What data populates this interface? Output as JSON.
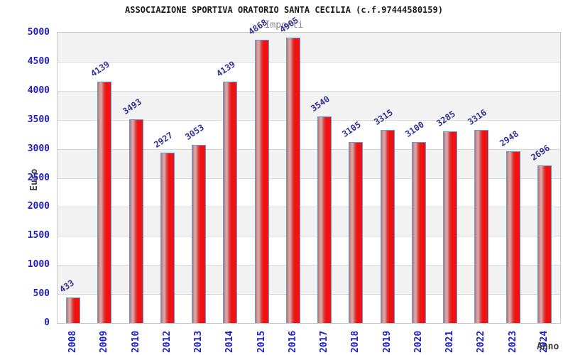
{
  "chart_data": {
    "type": "bar",
    "title": "ASSOCIAZIONE SPORTIVA ORATORIO SANTA CECILIA (c.f.97444580159)",
    "subtitle": "Importi",
    "xlabel": "Anno",
    "ylabel": "Euro",
    "categories": [
      "2008",
      "2009",
      "2010",
      "2012",
      "2013",
      "2014",
      "2015",
      "2016",
      "2017",
      "2018",
      "2019",
      "2020",
      "2021",
      "2022",
      "2023",
      "2024"
    ],
    "values": [
      433,
      4139,
      3493,
      2927,
      3053,
      4139,
      4868,
      4905,
      3540,
      3105,
      3315,
      3100,
      3285,
      3316,
      2948,
      2696
    ],
    "ylim": [
      0,
      5000
    ],
    "ytick_step": 500,
    "yticks": [
      0,
      500,
      1000,
      1500,
      2000,
      2500,
      3000,
      3500,
      4000,
      4500,
      5000
    ],
    "grid": "horizontal",
    "legend": "none",
    "bands": "alternating gray/white per 500, gray at top",
    "colors": {
      "bar_fill": "#f01111",
      "bar_mid": "#dd4040",
      "bar_edge": "#c96a6a",
      "bar_highlight": "#d6a6a6",
      "bar_border": "#55a0dd",
      "value_label": "#333399",
      "axis_tick": "#1c1ccc",
      "axis_title": "#3c3c3c",
      "subtitle": "#888888",
      "title": "#1a1a1a",
      "band_gray": "#f2f2f2",
      "gridline": "#d8d8d8",
      "plot_border": "#c8c8c8"
    }
  }
}
